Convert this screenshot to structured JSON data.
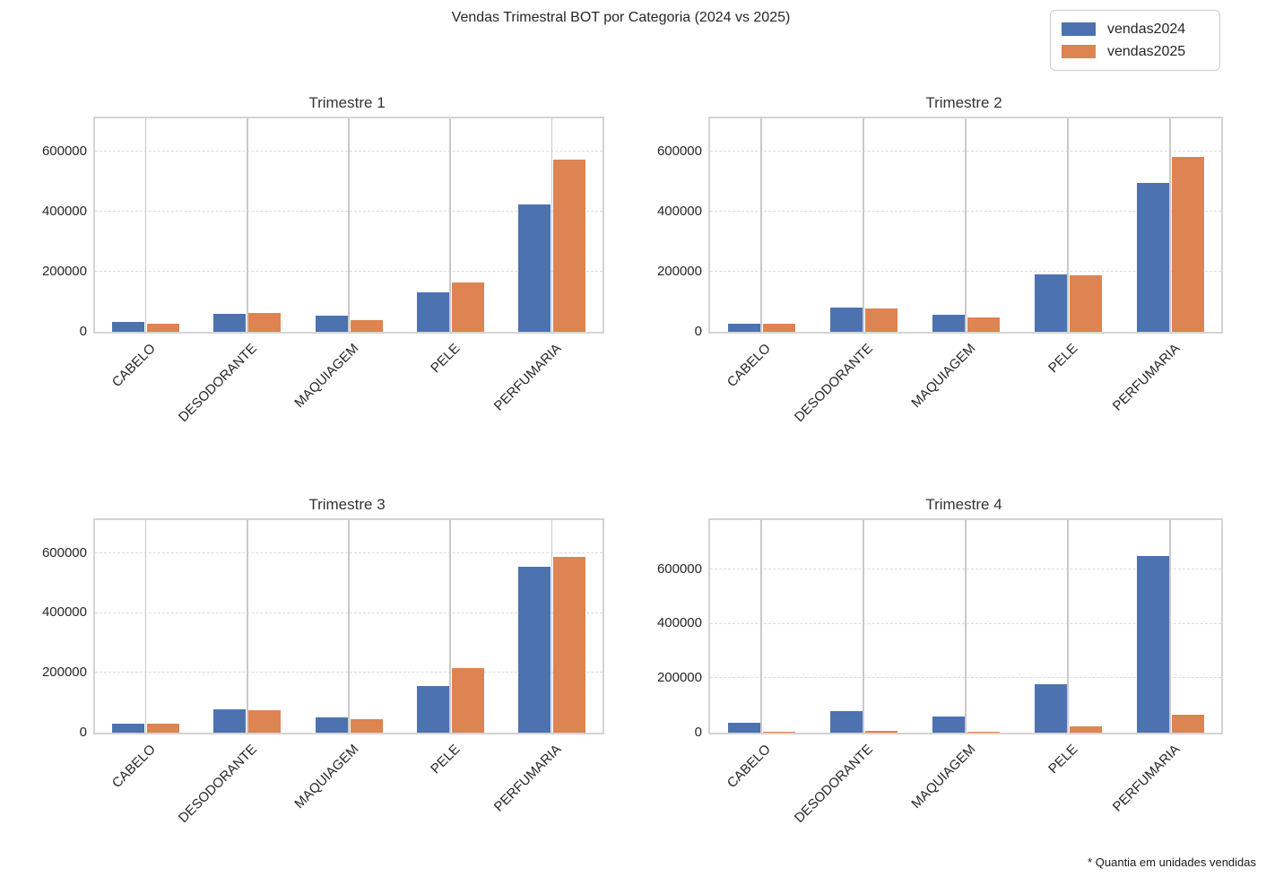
{
  "figure": {
    "title": "Vendas Trimestral BOT por Categoria (2024 vs 2025)",
    "footnote": "* Quantia em unidades vendidas"
  },
  "legend": {
    "items": [
      {
        "label": "vendas2024",
        "color": "#4C72B0"
      },
      {
        "label": "vendas2025",
        "color": "#DD8452"
      }
    ],
    "position": "upper-right"
  },
  "chart_data": [
    {
      "type": "bar",
      "title": "Trimestre 1",
      "categories": [
        "CABELO",
        "DESODORANTE",
        "MAQUIAGEM",
        "PELE",
        "PERFUMARIA"
      ],
      "series": [
        {
          "name": "vendas2024",
          "color": "#4C72B0",
          "values": [
            33000,
            61000,
            55000,
            130000,
            425000
          ]
        },
        {
          "name": "vendas2025",
          "color": "#DD8452",
          "values": [
            27000,
            64000,
            39000,
            165000,
            574000
          ]
        }
      ],
      "yticks": [
        0,
        200000,
        400000,
        600000
      ],
      "ylim": [
        0,
        710000
      ],
      "grid": true
    },
    {
      "type": "bar",
      "title": "Trimestre 2",
      "categories": [
        "CABELO",
        "DESODORANTE",
        "MAQUIAGEM",
        "PELE",
        "PERFUMARIA"
      ],
      "series": [
        {
          "name": "vendas2024",
          "color": "#4C72B0",
          "values": [
            27000,
            81000,
            58000,
            191000,
            495000
          ]
        },
        {
          "name": "vendas2025",
          "color": "#DD8452",
          "values": [
            28000,
            78000,
            47000,
            187000,
            582000
          ]
        }
      ],
      "yticks": [
        0,
        200000,
        400000,
        600000
      ],
      "ylim": [
        0,
        710000
      ],
      "grid": true
    },
    {
      "type": "bar",
      "title": "Trimestre 3",
      "categories": [
        "CABELO",
        "DESODORANTE",
        "MAQUIAGEM",
        "PELE",
        "PERFUMARIA"
      ],
      "series": [
        {
          "name": "vendas2024",
          "color": "#4C72B0",
          "values": [
            31000,
            79000,
            52000,
            157000,
            554000
          ]
        },
        {
          "name": "vendas2025",
          "color": "#DD8452",
          "values": [
            30000,
            76000,
            44000,
            216000,
            586000
          ]
        }
      ],
      "yticks": [
        0,
        200000,
        400000,
        600000
      ],
      "ylim": [
        0,
        710000
      ],
      "grid": true
    },
    {
      "type": "bar",
      "title": "Trimestre 4",
      "categories": [
        "CABELO",
        "DESODORANTE",
        "MAQUIAGEM",
        "PELE",
        "PERFUMARIA"
      ],
      "series": [
        {
          "name": "vendas2024",
          "color": "#4C72B0",
          "values": [
            36000,
            79000,
            60000,
            178000,
            648000
          ]
        },
        {
          "name": "vendas2025",
          "color": "#DD8452",
          "values": [
            2000,
            8000,
            2000,
            23000,
            66000
          ]
        }
      ],
      "yticks": [
        0,
        200000,
        400000,
        600000
      ],
      "ylim": [
        0,
        780000
      ],
      "grid": true
    }
  ]
}
